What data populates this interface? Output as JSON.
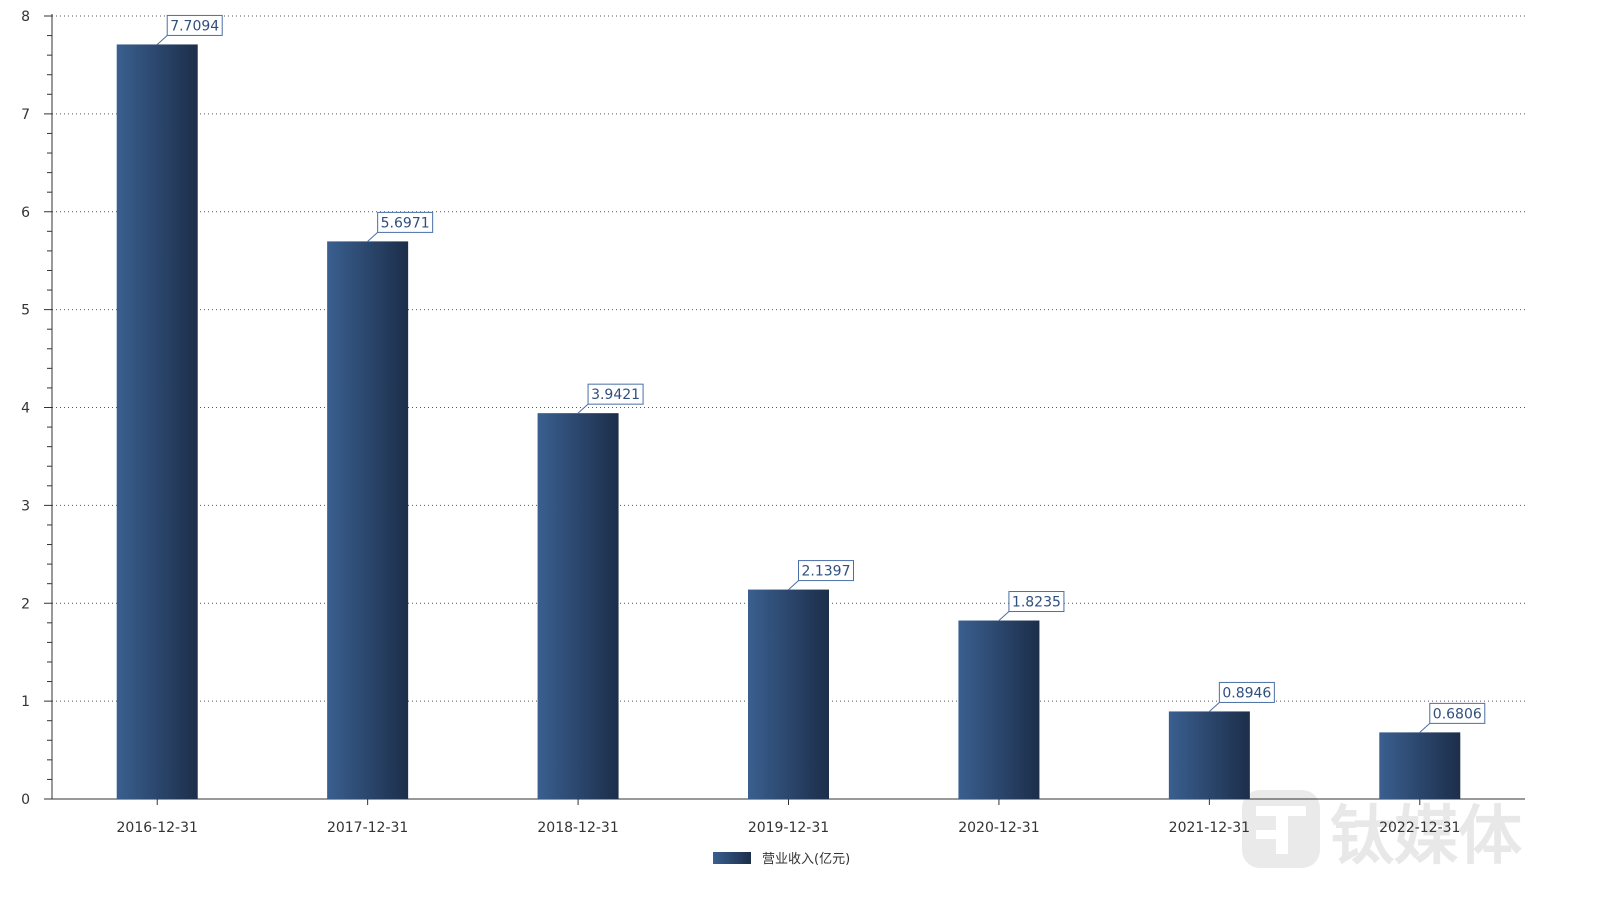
{
  "chart_data": {
    "type": "bar",
    "categories": [
      "2016-12-31",
      "2017-12-31",
      "2018-12-31",
      "2019-12-31",
      "2020-12-31",
      "2021-12-31",
      "2022-12-31"
    ],
    "series": [
      {
        "name": "营业收入(亿元)",
        "values": [
          7.7094,
          5.6971,
          3.9421,
          2.1397,
          1.8235,
          0.8946,
          0.6806
        ]
      }
    ],
    "value_labels": [
      "7.7094",
      "5.6971",
      "3.9421",
      "2.1397",
      "1.8235",
      "0.8946",
      "0.6806"
    ],
    "y_ticks": [
      "0",
      "1",
      "2",
      "3",
      "4",
      "5",
      "6",
      "7",
      "8"
    ],
    "ylim": [
      0,
      8
    ],
    "grid": "horizontal dotted",
    "legend": "bottom-center",
    "title": "",
    "xlabel": "",
    "ylabel": ""
  },
  "colors": {
    "bar_light": "#3a5f8f",
    "bar_dark": "#1c2e4a",
    "label_border": "#4a6fa5",
    "label_text": "#2f4f7f",
    "grid": "#555555",
    "axis": "#333333"
  },
  "watermark": {
    "text": "钛媒体",
    "icon": "tmt-logo-icon"
  }
}
